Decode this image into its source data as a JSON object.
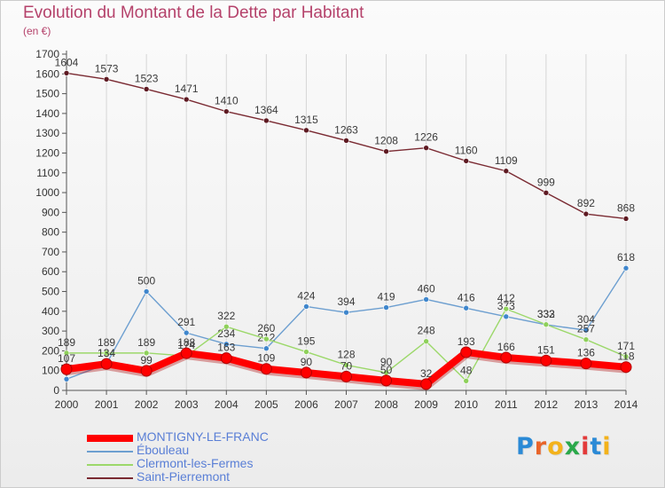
{
  "title": "Evolution du Montant de la Dette par Habitant",
  "subtitle": "(en €)",
  "logo": {
    "text": "Proxiti",
    "letter_colors": [
      "#2b8ad6",
      "#e8642a",
      "#f3b21b",
      "#2aa84a",
      "#e33a3a",
      "#2b8ad6",
      "#f3b21b"
    ]
  },
  "chart_data": {
    "type": "line",
    "x": [
      2000,
      2001,
      2002,
      2003,
      2004,
      2005,
      2006,
      2007,
      2008,
      2009,
      2010,
      2011,
      2012,
      2013,
      2014
    ],
    "ylim": [
      0,
      1700
    ],
    "yticks": [
      0,
      100,
      200,
      300,
      400,
      500,
      600,
      700,
      800,
      900,
      1000,
      1100,
      1200,
      1300,
      1400,
      1500,
      1600,
      1700
    ],
    "xlabel": "",
    "ylabel": "",
    "series": [
      {
        "name": "Saint-Pierremont",
        "color": "#7a2a32",
        "marker": "#5e1a22",
        "values": [
          1604,
          1573,
          1523,
          1471,
          1410,
          1364,
          1315,
          1263,
          1208,
          1226,
          1160,
          1109,
          999,
          892,
          868
        ]
      },
      {
        "name": "Éboulеau",
        "color": "#6d9fd0",
        "marker": "#3f86cc",
        "values": [
          57,
          134,
          500,
          291,
          234,
          212,
          424,
          394,
          419,
          460,
          416,
          373,
          332,
          304,
          618
        ]
      },
      {
        "name": "Clermont-les-Fermes",
        "color": "#9cd86a",
        "marker": "#8ed05a",
        "values": [
          189,
          189,
          189,
          174,
          322,
          260,
          195,
          128,
          90,
          248,
          48,
          412,
          333,
          257,
          171
        ]
      },
      {
        "name": "MONTIGNY-LE-FRANC",
        "color": "#ff0000",
        "marker": "#ff0000",
        "values": [
          107,
          134,
          99,
          188,
          163,
          109,
          90,
          70,
          50,
          32,
          193,
          166,
          151,
          136,
          118
        ]
      }
    ]
  },
  "legend": [
    {
      "name": "MONTIGNY-LE-FRANC",
      "color": "#ff0000",
      "thick": true
    },
    {
      "name": "Éboulеau",
      "color": "#6d9fd0",
      "thick": false
    },
    {
      "name": "Clermont-les-Fermes",
      "color": "#9cd86a",
      "thick": false
    },
    {
      "name": "Saint-Pierremont",
      "color": "#7a2a32",
      "thick": false
    }
  ]
}
